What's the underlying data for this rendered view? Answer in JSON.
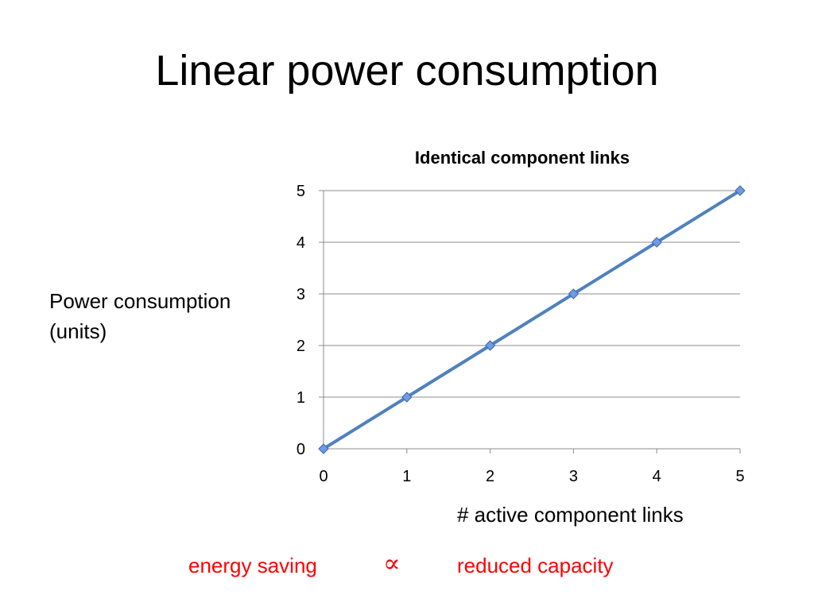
{
  "slide": {
    "title": "Linear power consumption"
  },
  "chart_data": {
    "type": "line",
    "title": "Identical component links",
    "xlabel": "# active component links",
    "ylabel_lines": [
      "Power consumption",
      "(units)"
    ],
    "x": [
      0,
      1,
      2,
      3,
      4,
      5
    ],
    "series": [
      {
        "values": [
          0,
          1,
          2,
          3,
          4,
          5
        ],
        "color": "#4f81bd",
        "marker": "diamond"
      }
    ],
    "xlim": [
      0,
      5
    ],
    "ylim": [
      0,
      5
    ],
    "xticks": [
      "0",
      "1",
      "2",
      "3",
      "4",
      "5"
    ],
    "yticks": [
      "0",
      "1",
      "2",
      "3",
      "4",
      "5"
    ],
    "grid": "horizontal",
    "legend": "none"
  },
  "footer": {
    "left_text": "energy saving",
    "symbol": "∝",
    "right_text": "reduced capacity",
    "color": "#ff0000"
  }
}
